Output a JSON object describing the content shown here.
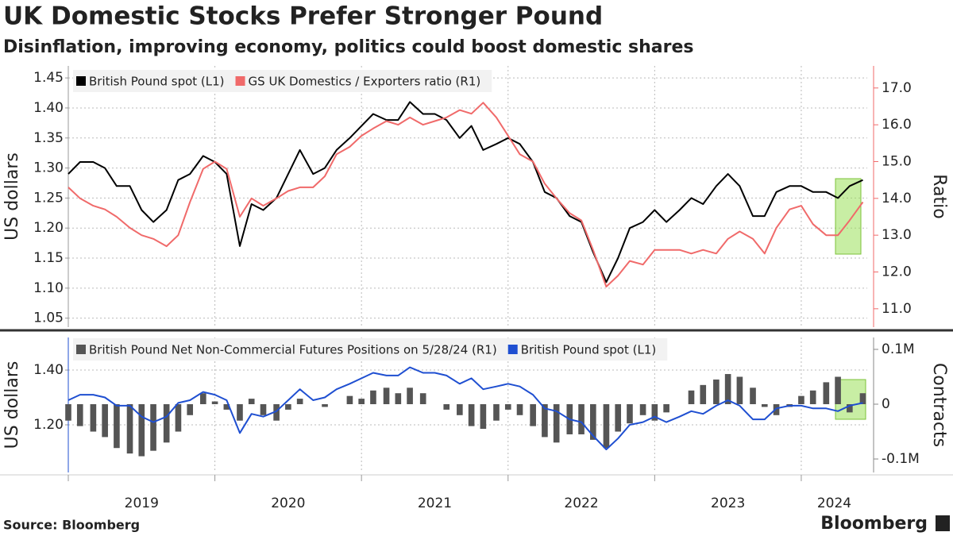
{
  "title": "UK Domestic Stocks Prefer Stronger Pound",
  "subtitle": "Disinflation, improving economy, politics could boost domestic shares",
  "source": "Source: Bloomberg",
  "brand": "Bloomberg",
  "chart_data": [
    {
      "type": "line",
      "x": [
        2019,
        2019.08,
        2019.17,
        2019.25,
        2019.33,
        2019.42,
        2019.5,
        2019.58,
        2019.67,
        2019.75,
        2019.83,
        2019.92,
        2020,
        2020.08,
        2020.17,
        2020.25,
        2020.33,
        2020.42,
        2020.5,
        2020.58,
        2020.67,
        2020.75,
        2020.83,
        2020.92,
        2021,
        2021.08,
        2021.17,
        2021.25,
        2021.33,
        2021.42,
        2021.5,
        2021.58,
        2021.67,
        2021.75,
        2021.83,
        2021.92,
        2022,
        2022.08,
        2022.17,
        2022.25,
        2022.33,
        2022.42,
        2022.5,
        2022.58,
        2022.67,
        2022.75,
        2022.83,
        2022.92,
        2023,
        2023.08,
        2023.17,
        2023.25,
        2023.33,
        2023.42,
        2023.5,
        2023.58,
        2023.67,
        2023.75,
        2023.83,
        2023.92,
        2024,
        2024.08,
        2024.17,
        2024.25,
        2024.33,
        2024.42
      ],
      "xlim": [
        2019,
        2024.45
      ],
      "xticks": [
        2019,
        2020,
        2021,
        2022,
        2023,
        2024
      ],
      "ylabel": "US dollars",
      "y2label": "Ratio",
      "ylim": [
        1.035,
        1.47
      ],
      "yticks": [
        1.05,
        {
          "value": 1.1,
          "label": "1.10"
        },
        1.15,
        {
          "value": 1.2,
          "label": "1.20"
        },
        1.25,
        {
          "value": 1.3,
          "label": "1.30"
        },
        1.35,
        {
          "value": 1.4,
          "label": "1.40"
        },
        1.45
      ],
      "y2lim": [
        10.5,
        17.6
      ],
      "y2ticks": [
        {
          "value": 11,
          "label": "11.0"
        },
        {
          "value": 12,
          "label": "12.0"
        },
        {
          "value": 13,
          "label": "13.0"
        },
        {
          "value": 14,
          "label": "14.0"
        },
        {
          "value": 15,
          "label": "15.0"
        },
        {
          "value": 16,
          "label": "16.0"
        },
        {
          "value": 17,
          "label": "17.0"
        }
      ],
      "grid": true,
      "series": [
        {
          "name": "British Pound spot (L1)",
          "color": "#000000",
          "type": "line",
          "values": [
            1.29,
            1.31,
            1.31,
            1.3,
            1.27,
            1.27,
            1.23,
            1.21,
            1.23,
            1.28,
            1.29,
            1.32,
            1.31,
            1.29,
            1.17,
            1.24,
            1.23,
            1.25,
            1.29,
            1.33,
            1.29,
            1.3,
            1.33,
            1.35,
            1.37,
            1.39,
            1.38,
            1.38,
            1.41,
            1.39,
            1.39,
            1.38,
            1.35,
            1.37,
            1.33,
            1.34,
            1.35,
            1.34,
            1.31,
            1.26,
            1.25,
            1.22,
            1.21,
            1.16,
            1.11,
            1.15,
            1.2,
            1.21,
            1.23,
            1.21,
            1.23,
            1.25,
            1.24,
            1.27,
            1.29,
            1.27,
            1.22,
            1.22,
            1.26,
            1.27,
            1.27,
            1.26,
            1.26,
            1.25,
            1.27,
            1.28
          ]
        },
        {
          "name": "GS UK Domestics / Exporters ratio (R1)",
          "color": "#f06a6a",
          "type": "line",
          "axis": "y2",
          "values": [
            14.3,
            14.0,
            13.8,
            13.7,
            13.5,
            13.2,
            13.0,
            12.9,
            12.7,
            13.0,
            13.9,
            14.8,
            15.0,
            14.8,
            13.5,
            14.0,
            13.8,
            14.0,
            14.2,
            14.3,
            14.3,
            14.6,
            15.2,
            15.4,
            15.7,
            15.9,
            16.1,
            16.0,
            16.2,
            16.0,
            16.1,
            16.2,
            16.4,
            16.3,
            16.6,
            16.2,
            15.7,
            15.2,
            15.0,
            14.4,
            14.0,
            13.6,
            13.4,
            12.6,
            11.6,
            11.9,
            12.3,
            12.2,
            12.6,
            12.6,
            12.6,
            12.5,
            12.6,
            12.5,
            12.9,
            13.1,
            12.9,
            12.5,
            13.2,
            13.7,
            13.8,
            13.3,
            13.0,
            13.0,
            13.4,
            13.9
          ]
        }
      ]
    },
    {
      "type": "bar-line",
      "x": [
        2019,
        2019.08,
        2019.17,
        2019.25,
        2019.33,
        2019.42,
        2019.5,
        2019.58,
        2019.67,
        2019.75,
        2019.83,
        2019.92,
        2020,
        2020.08,
        2020.17,
        2020.25,
        2020.33,
        2020.42,
        2020.5,
        2020.58,
        2020.67,
        2020.75,
        2020.83,
        2020.92,
        2021,
        2021.08,
        2021.17,
        2021.25,
        2021.33,
        2021.42,
        2021.5,
        2021.58,
        2021.67,
        2021.75,
        2021.83,
        2021.92,
        2022,
        2022.08,
        2022.17,
        2022.25,
        2022.33,
        2022.42,
        2022.5,
        2022.58,
        2022.67,
        2022.75,
        2022.83,
        2022.92,
        2023,
        2023.08,
        2023.17,
        2023.25,
        2023.33,
        2023.42,
        2023.5,
        2023.58,
        2023.67,
        2023.75,
        2023.83,
        2023.92,
        2024,
        2024.08,
        2024.17,
        2024.25,
        2024.33,
        2024.42
      ],
      "xlim": [
        2019,
        2024.45
      ],
      "xticks": [
        2019,
        2020,
        2021,
        2022,
        2023,
        2024
      ],
      "ylabel": "US dollars",
      "y2label": "Contracts",
      "ylim": [
        1.026,
        1.519
      ],
      "yticks": [
        {
          "value": 1.2,
          "label": "1.20"
        },
        {
          "value": 1.4,
          "label": "1.40"
        }
      ],
      "y2lim": [
        -124600,
        121700
      ],
      "y2ticks": [
        {
          "value": -100000,
          "label": "-0.1M"
        },
        0,
        {
          "value": 100000,
          "label": "0.1M"
        }
      ],
      "grid": true,
      "series": [
        {
          "name": "British Pound Net Non-Commercial Futures Positions on 5/28/24 (R1)",
          "color": "#555555",
          "type": "bar",
          "axis": "y2",
          "values": [
            -30000,
            -40000,
            -50000,
            -60000,
            -80000,
            -90000,
            -95000,
            -85000,
            -70000,
            -50000,
            -20000,
            20000,
            5000,
            -10000,
            -30000,
            10000,
            -20000,
            -30000,
            -10000,
            10000,
            0,
            -5000,
            0,
            15000,
            10000,
            25000,
            30000,
            20000,
            30000,
            20000,
            0,
            -10000,
            -20000,
            -40000,
            -45000,
            -30000,
            -10000,
            -20000,
            -40000,
            -60000,
            -70000,
            -55000,
            -55000,
            -65000,
            -80000,
            -50000,
            -35000,
            -20000,
            -30000,
            -15000,
            0,
            25000,
            35000,
            45000,
            55000,
            50000,
            30000,
            -5000,
            -20000,
            -5000,
            15000,
            25000,
            40000,
            50000,
            -15000,
            20000
          ]
        },
        {
          "name": "British Pound spot (L1)",
          "color": "#1f4fd1",
          "type": "line",
          "values": [
            1.29,
            1.31,
            1.31,
            1.3,
            1.27,
            1.27,
            1.23,
            1.21,
            1.23,
            1.28,
            1.29,
            1.32,
            1.31,
            1.29,
            1.17,
            1.24,
            1.23,
            1.25,
            1.29,
            1.33,
            1.29,
            1.3,
            1.33,
            1.35,
            1.37,
            1.39,
            1.38,
            1.38,
            1.41,
            1.39,
            1.39,
            1.38,
            1.35,
            1.37,
            1.33,
            1.34,
            1.35,
            1.34,
            1.31,
            1.26,
            1.25,
            1.22,
            1.21,
            1.16,
            1.11,
            1.15,
            1.2,
            1.21,
            1.23,
            1.21,
            1.23,
            1.25,
            1.24,
            1.27,
            1.29,
            1.27,
            1.22,
            1.22,
            1.26,
            1.27,
            1.27,
            1.26,
            1.26,
            1.25,
            1.27,
            1.28
          ]
        }
      ]
    }
  ]
}
